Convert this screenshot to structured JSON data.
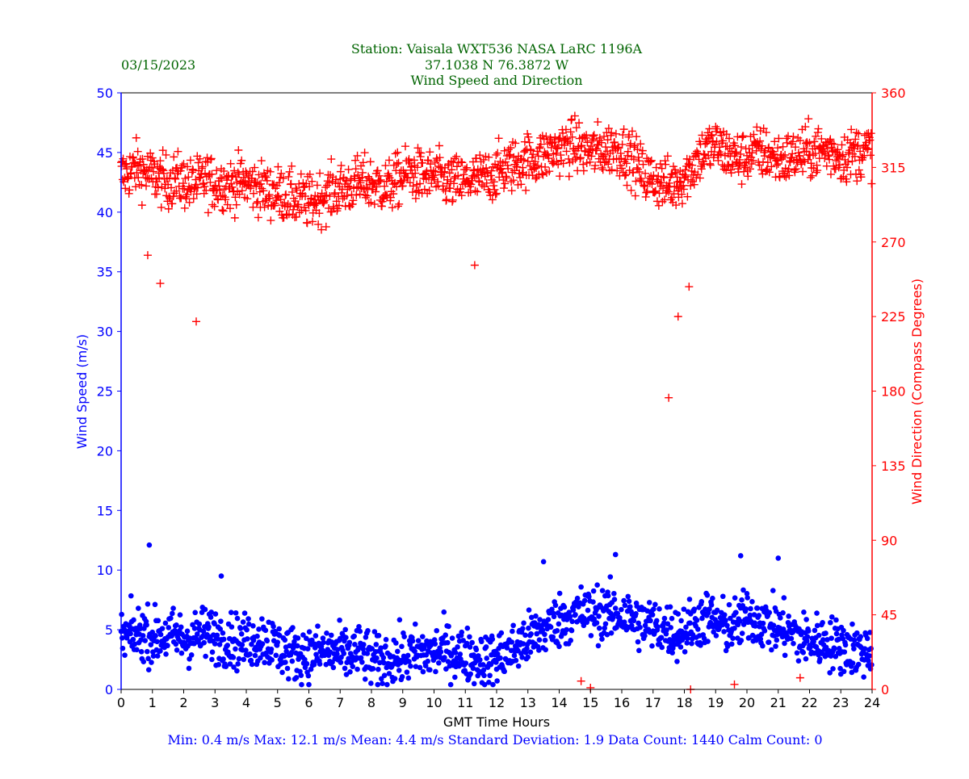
{
  "header": {
    "date": "03/15/2023",
    "title_line1": "Station:  Vaisala WXT536  NASA LaRC 1196A",
    "title_line2": "37.1038 N 76.3872 W",
    "title_line3": "Wind Speed and Direction"
  },
  "footer": {
    "stats": "Min: 0.4 m/s   Max: 12.1 m/s   Mean: 4.4 m/s  Standard Deviation: 1.9  Data Count: 1440  Calm Count:  0"
  },
  "colors": {
    "title": "#006400",
    "speed": "#0000ff",
    "direction": "#ff0000",
    "footer": "#0000ff",
    "axis": "#000000"
  },
  "chart_data": {
    "type": "scatter",
    "xlabel": "GMT Time Hours",
    "ylabel": "Wind Speed (m/s)",
    "y2label": "Wind Direction (Compass Degrees)",
    "xlim": [
      0,
      24
    ],
    "ylim": [
      0,
      50
    ],
    "y2lim": [
      0,
      360
    ],
    "xticks": [
      0,
      1,
      2,
      3,
      4,
      5,
      6,
      7,
      8,
      9,
      10,
      11,
      12,
      13,
      14,
      15,
      16,
      17,
      18,
      19,
      20,
      21,
      22,
      23,
      24
    ],
    "yticks": [
      0,
      5,
      10,
      15,
      20,
      25,
      30,
      35,
      40,
      45,
      50
    ],
    "y2ticks": [
      0,
      45,
      90,
      135,
      180,
      225,
      270,
      315,
      360
    ],
    "grid": false,
    "series": [
      {
        "name": "Wind Speed",
        "axis": "left",
        "marker": "dot",
        "x": [
          0,
          0.25,
          0.5,
          0.75,
          1,
          1.25,
          1.5,
          1.75,
          2,
          2.25,
          2.5,
          2.75,
          3,
          3.25,
          3.5,
          3.75,
          4,
          4.25,
          4.5,
          4.75,
          5,
          5.25,
          5.5,
          5.75,
          6,
          6.25,
          6.5,
          6.75,
          7,
          7.25,
          7.5,
          7.75,
          8,
          8.25,
          8.5,
          8.75,
          9,
          9.25,
          9.5,
          9.75,
          10,
          10.25,
          10.5,
          10.75,
          11,
          11.25,
          11.5,
          11.75,
          12,
          12.25,
          12.5,
          12.75,
          13,
          13.25,
          13.5,
          13.75,
          14,
          14.25,
          14.5,
          14.75,
          15,
          15.25,
          15.5,
          15.75,
          16,
          16.25,
          16.5,
          16.75,
          17,
          17.25,
          17.5,
          17.75,
          18,
          18.25,
          18.5,
          18.75,
          19,
          19.25,
          19.5,
          19.75,
          20,
          20.25,
          20.5,
          20.75,
          21,
          21.25,
          21.5,
          21.75,
          22,
          22.25,
          22.5,
          22.75,
          23,
          23.25,
          23.5,
          23.75,
          24
        ],
        "y": [
          4.2,
          4.5,
          4.6,
          4.8,
          4.3,
          4.5,
          4.4,
          4.5,
          4.2,
          4.3,
          4.6,
          4.7,
          4.5,
          4.3,
          4.2,
          4.0,
          4.0,
          4.1,
          4.3,
          4.0,
          3.5,
          3.2,
          3.0,
          3.0,
          2.9,
          3.0,
          3.2,
          3.1,
          3.0,
          2.9,
          3.1,
          3.0,
          2.4,
          2.3,
          2.5,
          2.7,
          2.6,
          2.9,
          3.0,
          3.0,
          3.1,
          3.3,
          3.2,
          3.0,
          2.9,
          2.7,
          2.5,
          2.4,
          2.6,
          3.0,
          3.2,
          3.8,
          4.1,
          4.6,
          5.0,
          5.4,
          5.8,
          6.0,
          6.2,
          6.5,
          6.3,
          6.5,
          6.4,
          6.3,
          6.3,
          6.0,
          5.7,
          5.5,
          5.3,
          5.2,
          5.0,
          4.8,
          5.0,
          5.4,
          5.8,
          6.0,
          5.6,
          5.3,
          5.2,
          5.5,
          6.2,
          6.0,
          5.7,
          5.4,
          5.1,
          5.0,
          4.6,
          4.2,
          4.0,
          4.1,
          4.0,
          3.8,
          3.6,
          3.5,
          3.3,
          3.2,
          3.4
        ]
      },
      {
        "name": "Wind Direction",
        "axis": "right",
        "marker": "plus",
        "x": [
          0,
          0.25,
          0.5,
          0.75,
          1,
          1.25,
          1.5,
          1.75,
          2,
          2.25,
          2.5,
          2.75,
          3,
          3.25,
          3.5,
          3.75,
          4,
          4.25,
          4.5,
          4.75,
          5,
          5.25,
          5.5,
          5.75,
          6,
          6.25,
          6.5,
          6.75,
          7,
          7.25,
          7.5,
          7.75,
          8,
          8.25,
          8.5,
          8.75,
          9,
          9.25,
          9.5,
          9.75,
          10,
          10.25,
          10.5,
          10.75,
          11,
          11.25,
          11.5,
          11.75,
          12,
          12.25,
          12.5,
          12.75,
          13,
          13.25,
          13.5,
          13.75,
          14,
          14.25,
          14.5,
          14.75,
          15,
          15.25,
          15.5,
          15.75,
          16,
          16.25,
          16.5,
          16.75,
          17,
          17.25,
          17.5,
          17.75,
          18,
          18.25,
          18.5,
          18.75,
          19,
          19.25,
          19.5,
          19.75,
          20,
          20.25,
          20.5,
          20.75,
          21,
          21.25,
          21.5,
          21.75,
          22,
          22.25,
          22.5,
          22.75,
          23,
          23.25,
          23.5,
          23.75,
          24
        ],
        "y": [
          310,
          312,
          315,
          312,
          310,
          308,
          306,
          308,
          306,
          304,
          306,
          308,
          305,
          306,
          304,
          306,
          306,
          304,
          302,
          300,
          300,
          298,
          296,
          295,
          294,
          296,
          298,
          300,
          302,
          303,
          305,
          306,
          305,
          304,
          303,
          306,
          310,
          312,
          310,
          309,
          310,
          308,
          306,
          306,
          306,
          308,
          308,
          310,
          312,
          315,
          316,
          318,
          320,
          320,
          322,
          324,
          326,
          328,
          328,
          326,
          324,
          325,
          326,
          327,
          325,
          322,
          316,
          310,
          308,
          306,
          304,
          306,
          310,
          315,
          322,
          326,
          328,
          325,
          322,
          320,
          322,
          324,
          324,
          322,
          320,
          320,
          322,
          323,
          324,
          325,
          325,
          324,
          322,
          322,
          324,
          325,
          326
        ]
      }
    ],
    "outliers": [
      {
        "series": "Wind Direction",
        "x": [
          0.85,
          1.25,
          2.4,
          11.3,
          17.5,
          17.8,
          18.15,
          14.7,
          15.0,
          18.2,
          19.6,
          21.7
        ],
        "y": [
          262,
          245,
          222,
          256,
          176,
          225,
          243,
          5,
          1,
          0,
          3,
          7
        ]
      },
      {
        "series": "Wind Speed",
        "x": [
          0.9,
          3.2,
          13.5,
          15.8,
          19.8,
          21.0
        ],
        "y": [
          12.1,
          9.5,
          10.7,
          11.3,
          11.2,
          11.0
        ]
      }
    ]
  }
}
